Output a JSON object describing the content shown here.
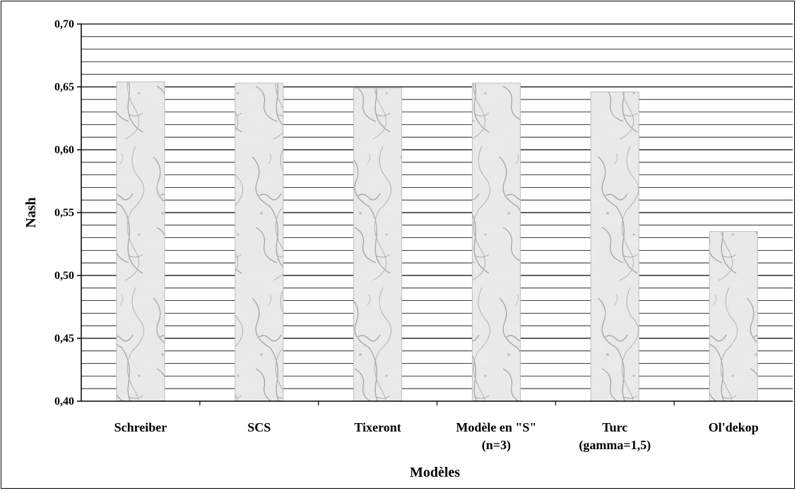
{
  "chart_data": {
    "type": "bar",
    "title": "",
    "xlabel": "Modèles",
    "ylabel": "Nash",
    "ylim": [
      0.4,
      0.7
    ],
    "y_ticks": [
      "0,40",
      "0,45",
      "0,50",
      "0,55",
      "0,60",
      "0,65",
      "0,70"
    ],
    "y_tick_values": [
      0.4,
      0.45,
      0.5,
      0.55,
      0.6,
      0.65,
      0.7
    ],
    "minor_gridline_step": 0.01,
    "grid": true,
    "categories": [
      [
        "Schreiber"
      ],
      [
        "SCS"
      ],
      [
        "Tixeront"
      ],
      [
        "Modèle en \"S\"",
        "(n=3)"
      ],
      [
        "Turc",
        "(gamma=1,5)"
      ],
      [
        "Ol'dekop"
      ]
    ],
    "values": [
      0.654,
      0.653,
      0.649,
      0.653,
      0.646,
      0.535
    ],
    "bar_fill": "marble-texture-gray",
    "colors": {
      "grid": "#000000",
      "bar_base": "#e6e6e6",
      "bar_vein": "#9a9a9a"
    }
  }
}
